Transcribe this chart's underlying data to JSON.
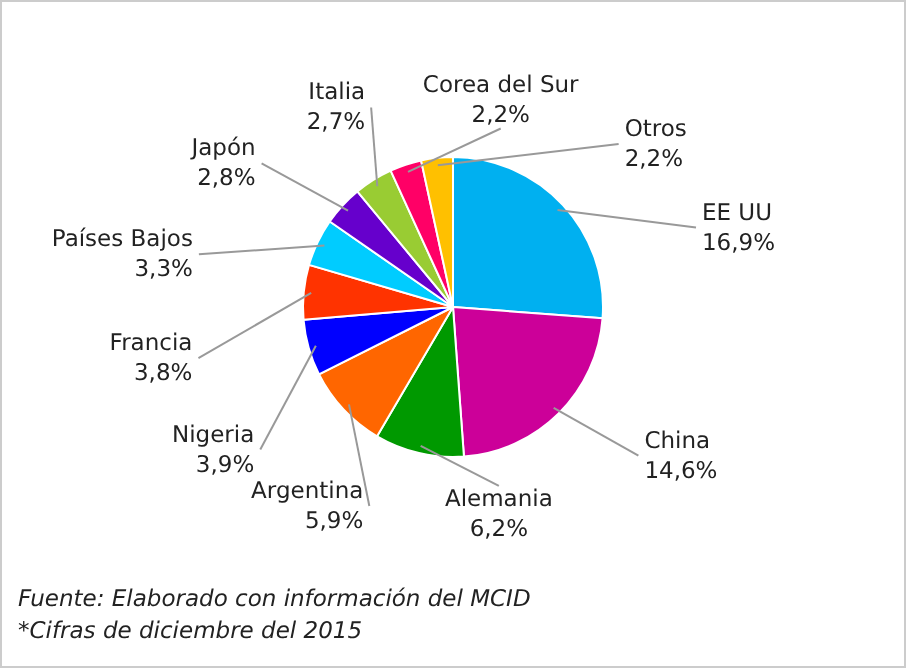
{
  "chart_data": {
    "type": "pie",
    "categories": [
      "EE UU",
      "China",
      "Alemania",
      "Argentina",
      "Nigeria",
      "Francia",
      "Países Bajos",
      "Japón",
      "Italia",
      "Corea del Sur",
      "Otros"
    ],
    "values": [
      16.9,
      14.6,
      6.2,
      5.9,
      3.9,
      3.8,
      3.3,
      2.8,
      2.7,
      2.2,
      2.2
    ],
    "value_labels": [
      "16,9%",
      "14,6%",
      "6,2%",
      "5,9%",
      "3,9%",
      "3,8%",
      "3,3%",
      "2,8%",
      "2,7%",
      "2,2%",
      "2,2%"
    ],
    "colors": [
      "#00b0f0",
      "#cc0099",
      "#009900",
      "#ff6600",
      "#0000ff",
      "#ff3300",
      "#00ccff",
      "#6600cc",
      "#99cc33",
      "#ff0066",
      "#ffc000"
    ],
    "legend": false,
    "annotations": [
      "Fuente: Elaborado con información del MCID",
      "*Cifras de diciembre del 2015"
    ]
  }
}
